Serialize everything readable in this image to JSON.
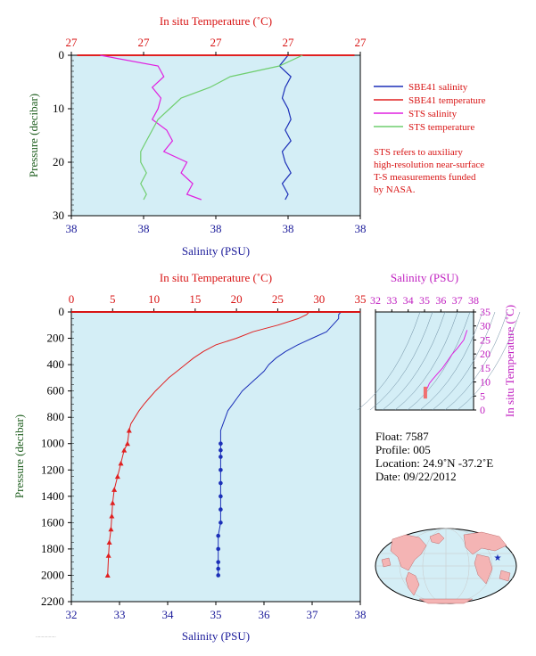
{
  "colors": {
    "panel_bg": "#d4eef6",
    "sbe_salinity": "#1b2fb8",
    "sbe_temperature": "#e02020",
    "sts_salinity": "#e020e0",
    "sts_temperature": "#6fce6f",
    "sts_temperature_overlap": "#f0a090",
    "axis_temperature": "#d81414",
    "axis_salinity": "#1b1b9a",
    "axis_pressure": "#1e5e1e",
    "ts_axis": "#c020c0",
    "note_text": "#d81414"
  },
  "top_chart": {
    "title_temp_axis": "In situ Temperature (˚C)",
    "temp_ticks": [
      "27",
      "27",
      "27",
      "27",
      "27"
    ],
    "pressure_label": "Pressure (decibar)",
    "pressure_ticks": [
      "0",
      "10",
      "20",
      "30"
    ],
    "salinity_label": "Salinity (PSU)",
    "salinity_ticks": [
      "38",
      "38",
      "38",
      "38",
      "38"
    ],
    "legend": [
      {
        "label": "SBE41 salinity",
        "color_key": "sbe_salinity"
      },
      {
        "label": "SBE41 temperature",
        "color_key": "sbe_temperature"
      },
      {
        "label": "STS salinity",
        "color_key": "sts_salinity"
      },
      {
        "label": "STS temperature",
        "color_key": "sts_temperature"
      }
    ],
    "note_lines": [
      "STS refers to auxiliary",
      "high-resolution near-surface",
      "T-S measurements funded",
      "by NASA."
    ]
  },
  "bottom_chart": {
    "title_temp_axis": "In situ Temperature (˚C)",
    "temp_ticks": [
      "0",
      "5",
      "10",
      "15",
      "20",
      "25",
      "30",
      "35"
    ],
    "pressure_label": "Pressure (decibar)",
    "pressure_ticks": [
      "0",
      "200",
      "400",
      "600",
      "800",
      "1000",
      "1200",
      "1400",
      "1600",
      "1800",
      "2000",
      "2200"
    ],
    "salinity_label": "Salinity (PSU)",
    "salinity_ticks": [
      "32",
      "33",
      "34",
      "35",
      "36",
      "37",
      "38"
    ]
  },
  "ts_chart": {
    "salinity_label": "Salinity (PSU)",
    "salinity_ticks": [
      "32",
      "33",
      "34",
      "35",
      "36",
      "37",
      "38"
    ],
    "temp_label": "In situ Temperature (˚C)",
    "temp_ticks": [
      "0",
      "5",
      "10",
      "15",
      "20",
      "25",
      "30",
      "35"
    ]
  },
  "float_info": {
    "float": "Float:  7587",
    "profile": "Profile:  005",
    "location": "Location:  24.9˚N  -37.2˚E",
    "date": "Date:  09/22/2012"
  },
  "chart_data": [
    {
      "type": "line",
      "title": "",
      "xlabel": "Salinity (PSU)",
      "ylabel": "Pressure (decibar)",
      "x2label": "In situ Temperature (˚C)",
      "ylim": [
        30,
        0
      ],
      "grid": false,
      "legend_position": "right",
      "series": [
        {
          "name": "SBE41 salinity",
          "axis": "salinity",
          "unit_fraction": true,
          "values": [
            [
              0.75,
              0
            ],
            [
              0.72,
              2
            ],
            [
              0.76,
              4
            ],
            [
              0.74,
              6
            ],
            [
              0.73,
              8
            ],
            [
              0.75,
              10
            ],
            [
              0.76,
              12
            ],
            [
              0.74,
              14
            ],
            [
              0.76,
              16
            ],
            [
              0.73,
              18
            ],
            [
              0.74,
              20
            ],
            [
              0.76,
              22
            ],
            [
              0.73,
              24
            ],
            [
              0.75,
              26
            ],
            [
              0.74,
              27
            ]
          ]
        },
        {
          "name": "SBE41 temperature",
          "axis": "temperature",
          "unit_fraction": true,
          "values": [
            [
              0.02,
              0
            ],
            [
              0.98,
              0
            ]
          ]
        },
        {
          "name": "STS salinity",
          "axis": "salinity",
          "unit_fraction": true,
          "values": [
            [
              0.1,
              0
            ],
            [
              0.3,
              2
            ],
            [
              0.32,
              4
            ],
            [
              0.28,
              6
            ],
            [
              0.31,
              8
            ],
            [
              0.3,
              10
            ],
            [
              0.28,
              12
            ],
            [
              0.33,
              14
            ],
            [
              0.35,
              16
            ],
            [
              0.32,
              18
            ],
            [
              0.4,
              20
            ],
            [
              0.38,
              22
            ],
            [
              0.42,
              24
            ],
            [
              0.4,
              26
            ],
            [
              0.45,
              27
            ]
          ]
        },
        {
          "name": "STS temperature",
          "axis": "temperature",
          "unit_fraction": true,
          "values": [
            [
              0.8,
              0
            ],
            [
              0.72,
              2
            ],
            [
              0.55,
              4
            ],
            [
              0.48,
              6
            ],
            [
              0.38,
              8
            ],
            [
              0.34,
              10
            ],
            [
              0.3,
              12
            ],
            [
              0.28,
              14
            ],
            [
              0.26,
              16
            ],
            [
              0.24,
              18
            ],
            [
              0.24,
              20
            ],
            [
              0.26,
              22
            ],
            [
              0.24,
              24
            ],
            [
              0.26,
              26
            ],
            [
              0.25,
              27
            ]
          ]
        }
      ]
    },
    {
      "type": "line",
      "title": "",
      "xlabel": "Salinity (PSU)",
      "ylabel": "Pressure (decibar)",
      "x2label": "In situ Temperature (˚C)",
      "xlim": [
        32,
        38
      ],
      "x2lim": [
        0,
        35
      ],
      "ylim": [
        2200,
        0
      ],
      "grid": false,
      "series": [
        {
          "name": "salinity",
          "axis": "salinity",
          "x": [
            37.6,
            37.55,
            37.55,
            37.3,
            37.0,
            36.7,
            36.45,
            36.25,
            36.1,
            36.0,
            35.85,
            35.7,
            35.55,
            35.45,
            35.35,
            35.25,
            35.2,
            35.15,
            35.1,
            35.1,
            35.1,
            35.1,
            35.1,
            35.1,
            35.1,
            35.1,
            35.1,
            35.05,
            35.05,
            35.05,
            35.05,
            35.05
          ],
          "y": [
            0,
            20,
            50,
            150,
            200,
            250,
            300,
            350,
            400,
            450,
            500,
            550,
            600,
            650,
            700,
            750,
            800,
            850,
            900,
            1000,
            1050,
            1100,
            1200,
            1300,
            1400,
            1500,
            1600,
            1700,
            1800,
            1900,
            1950,
            2000
          ]
        },
        {
          "name": "temperature",
          "axis": "temperature",
          "x": [
            28.8,
            28.5,
            27.5,
            25.0,
            22.0,
            20.0,
            17.5,
            16.0,
            14.8,
            13.8,
            12.8,
            11.8,
            11.0,
            10.2,
            9.5,
            8.8,
            8.2,
            7.7,
            7.2,
            7.0,
            6.8,
            6.4,
            6.0,
            5.6,
            5.2,
            5.0,
            4.9,
            4.8,
            4.6,
            4.5,
            4.4
          ],
          "y": [
            0,
            20,
            50,
            100,
            150,
            200,
            250,
            300,
            350,
            400,
            450,
            500,
            550,
            600,
            650,
            700,
            750,
            800,
            850,
            900,
            1000,
            1050,
            1150,
            1250,
            1350,
            1450,
            1550,
            1650,
            1750,
            1850,
            2000
          ],
          "marker_from_index": 19
        }
      ]
    },
    {
      "type": "scatter",
      "title": "",
      "xlabel": "Salinity (PSU)",
      "ylabel": "In situ Temperature (˚C)",
      "xlim": [
        32,
        38
      ],
      "ylim": [
        0,
        35
      ],
      "grid": false,
      "series": [
        {
          "name": "T-S",
          "x": [
            37.6,
            37.4,
            37.0,
            36.7,
            36.4,
            36.1,
            35.8,
            35.5,
            35.3,
            35.2,
            35.1,
            35.1,
            35.05,
            35.05
          ],
          "y": [
            28.5,
            25.0,
            22.0,
            20.0,
            17.5,
            15.0,
            13.0,
            11.0,
            9.5,
            8.2,
            7.0,
            6.0,
            5.0,
            4.4
          ]
        }
      ]
    }
  ]
}
